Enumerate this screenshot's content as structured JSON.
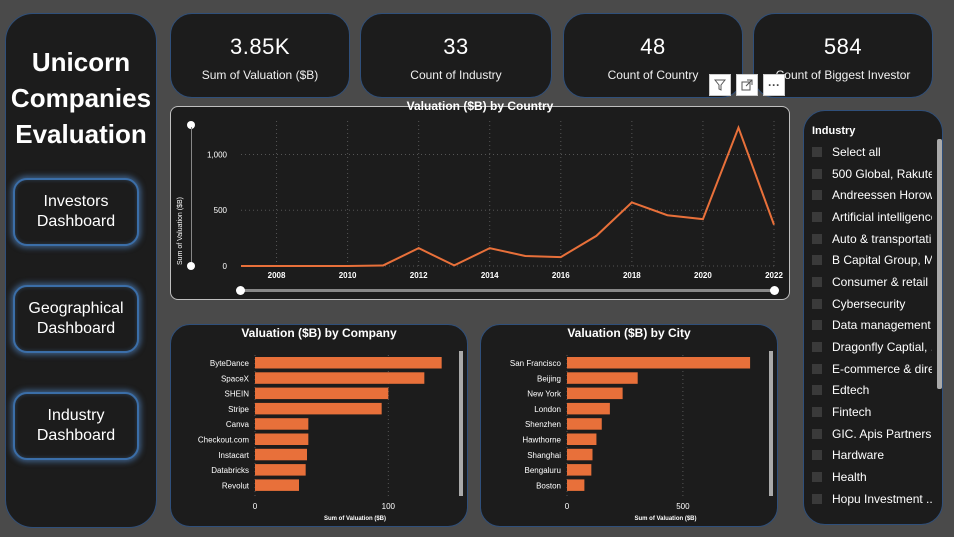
{
  "app_title": [
    "Unicorn",
    "Companies",
    "Evaluation"
  ],
  "nav": [
    {
      "line1": "Investors",
      "line2": "Dashboard"
    },
    {
      "line1": "Geographical",
      "line2": "Dashboard"
    },
    {
      "line1": "Industry",
      "line2": "Dashboard"
    }
  ],
  "kpis": [
    {
      "value": "3.85K",
      "label": "Sum of Valuation ($B)"
    },
    {
      "value": "33",
      "label": "Count of Industry"
    },
    {
      "value": "48",
      "label": "Count of Country"
    },
    {
      "value": "584",
      "label": "Count of Biggest Investor"
    }
  ],
  "toolbar": {
    "filter_icon": "filter-icon",
    "focus_icon": "focus-mode-icon",
    "more_label": "···"
  },
  "colors": {
    "accent": "#e8703a",
    "panel": "#1c1c1c",
    "border": "#2f4f7a",
    "background": "#4a4a4a"
  },
  "chart_data": [
    {
      "type": "line",
      "title": "Valuation ($B) by Country",
      "ylabel": "Sum of Valuation ($B)",
      "xlabel": "",
      "x": [
        2007,
        2008,
        2009,
        2010,
        2011,
        2012,
        2013,
        2014,
        2015,
        2016,
        2017,
        2018,
        2019,
        2020,
        2021,
        2022
      ],
      "y": [
        0,
        0,
        0,
        0,
        5,
        160,
        5,
        160,
        90,
        80,
        270,
        570,
        455,
        420,
        1240,
        370
      ],
      "x_ticks": [
        "2008",
        "2010",
        "2012",
        "2014",
        "2016",
        "2018",
        "2020",
        "2022"
      ],
      "y_ticks": [
        "0",
        "500",
        "1,000"
      ],
      "ylim": [
        0,
        1300
      ],
      "grid": true
    },
    {
      "type": "bar",
      "title": "Valuation ($B) by Company",
      "xlabel": "Sum of Valuation ($B)",
      "categories": [
        "ByteDance",
        "SpaceX",
        "SHEIN",
        "Stripe",
        "Canva",
        "Checkout.com",
        "Instacart",
        "Databricks",
        "Revolut"
      ],
      "values": [
        140,
        127,
        100,
        95,
        40,
        40,
        39,
        38,
        33
      ],
      "x_ticks": [
        "0",
        "100"
      ],
      "xlim": [
        0,
        150
      ]
    },
    {
      "type": "bar",
      "title": "Valuation ($B) by City",
      "xlabel": "Sum of Valuation ($B)",
      "categories": [
        "San Francisco",
        "Beijing",
        "New York",
        "London",
        "Shenzhen",
        "Hawthorne",
        "Shanghai",
        "Bengaluru",
        "Boston"
      ],
      "values": [
        790,
        305,
        240,
        185,
        150,
        127,
        110,
        105,
        75
      ],
      "x_ticks": [
        "0",
        "500"
      ],
      "xlim": [
        0,
        850
      ]
    }
  ],
  "slicer": {
    "header": "Industry",
    "items": [
      "Select all",
      "500 Global, Rakute...",
      "Andreessen Horowi...",
      "Artificial intelligence",
      "Auto & transportati...",
      "B Capital Group, M...",
      "Consumer & retail",
      "Cybersecurity",
      "Data management ...",
      "Dragonfly Captial, ...",
      "E-commerce & dire...",
      "Edtech",
      "Fintech",
      "GIC. Apis Partners, I...",
      "Hardware",
      "Health",
      "Hopu Investment ..."
    ]
  }
}
